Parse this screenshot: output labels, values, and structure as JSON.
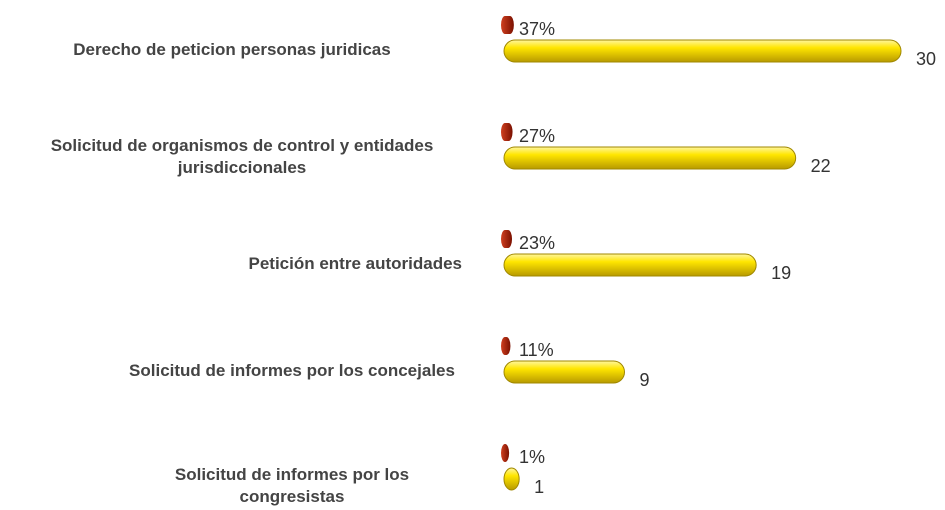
{
  "chart_data": {
    "type": "bar",
    "orientation": "horizontal",
    "categories": [
      "Derecho de peticion personas juridicas",
      "Solicitud de organismos de control y entidades jurisdiccionales",
      "Petición entre autoridades",
      "Solicitud de informes por los concejales",
      "Solicitud de informes por los congresistas"
    ],
    "series": [
      {
        "name": null,
        "color": "#a82010",
        "values": [
          0.37,
          0.27,
          0.23,
          0.11,
          0.01
        ],
        "value_labels": [
          "37%",
          "27%",
          "23%",
          "11%",
          "1%"
        ]
      },
      {
        "name": null,
        "color": "#ffe600",
        "values": [
          30,
          22,
          19,
          9,
          1
        ]
      }
    ],
    "xlim": [
      0,
      30
    ]
  }
}
